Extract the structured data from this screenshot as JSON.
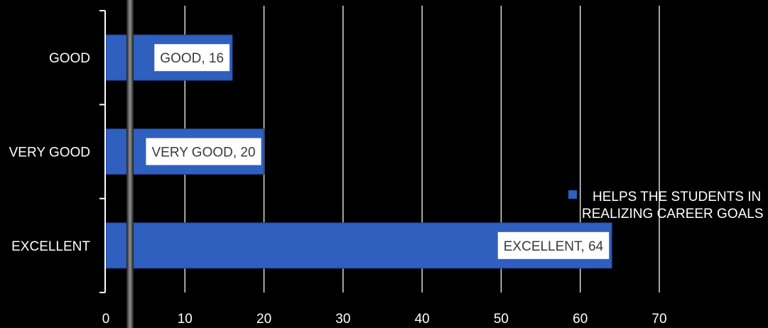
{
  "chart_data": {
    "type": "bar",
    "orientation": "horizontal",
    "categories": [
      "GOOD",
      "VERY GOOD",
      "EXCELLENT"
    ],
    "series": [
      {
        "name": "HELPS THE STUDENTS IN REALIZING CAREER GOALS",
        "values": [
          16,
          20,
          64
        ],
        "color": "#2f5fbf"
      }
    ],
    "data_labels": [
      "GOOD, 16",
      "VERY GOOD, 20",
      "EXCELLENT, 64"
    ],
    "xticks": [
      "0",
      "10",
      "20",
      "30",
      "40",
      "50",
      "60",
      "70"
    ],
    "xlim": [
      0,
      70
    ],
    "grid": true,
    "legend_position": "right",
    "legend_lines": [
      "HELPS THE STUDENTS IN",
      "REALIZING CAREER GOALS"
    ],
    "title": "",
    "xlabel": "",
    "ylabel": ""
  }
}
